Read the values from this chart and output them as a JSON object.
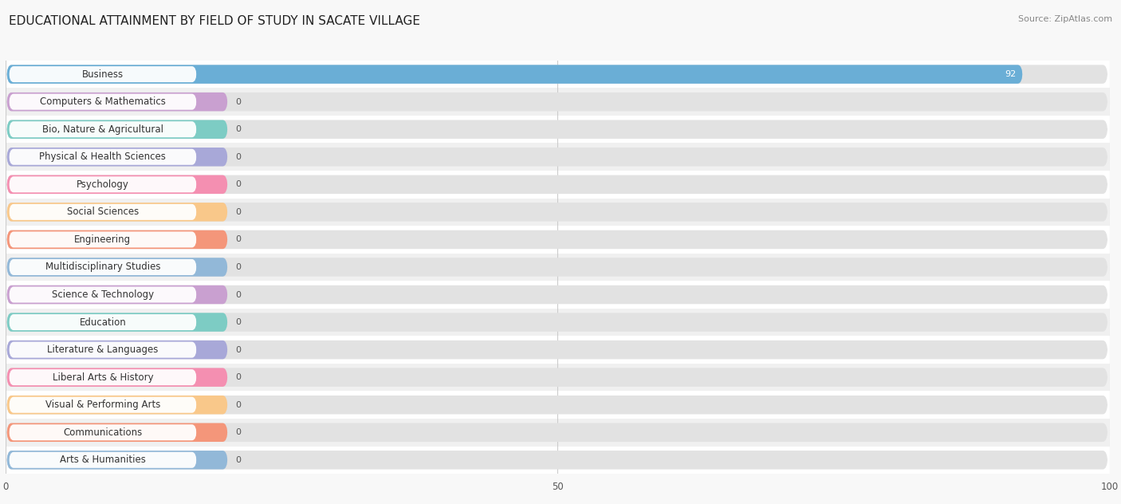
{
  "title": "EDUCATIONAL ATTAINMENT BY FIELD OF STUDY IN SACATE VILLAGE",
  "source": "Source: ZipAtlas.com",
  "categories": [
    "Business",
    "Computers & Mathematics",
    "Bio, Nature & Agricultural",
    "Physical & Health Sciences",
    "Psychology",
    "Social Sciences",
    "Engineering",
    "Multidisciplinary Studies",
    "Science & Technology",
    "Education",
    "Literature & Languages",
    "Liberal Arts & History",
    "Visual & Performing Arts",
    "Communications",
    "Arts & Humanities"
  ],
  "values": [
    92,
    0,
    0,
    0,
    0,
    0,
    0,
    0,
    0,
    0,
    0,
    0,
    0,
    0,
    0
  ],
  "bar_colors": [
    "#6aaed6",
    "#c9a0d0",
    "#7dccc4",
    "#a8a8d8",
    "#f48fb1",
    "#f9c88a",
    "#f4967a",
    "#92b8d8",
    "#c9a0d0",
    "#7dccc4",
    "#a8a8d8",
    "#f48fb1",
    "#f9c88a",
    "#f4967a",
    "#92b8d8"
  ],
  "xlim": [
    0,
    100
  ],
  "xticks": [
    0,
    50,
    100
  ],
  "background_color": "#f0f0f0",
  "bar_bg_color": "#e2e2e2",
  "row_bg_even": "#f5f5f5",
  "row_bg_odd": "#ebebeb",
  "title_fontsize": 11,
  "label_fontsize": 8.5,
  "value_fontsize": 8,
  "source_fontsize": 8,
  "value_label_color_zero": "#555555",
  "value_label_color_nonzero": "#ffffff"
}
